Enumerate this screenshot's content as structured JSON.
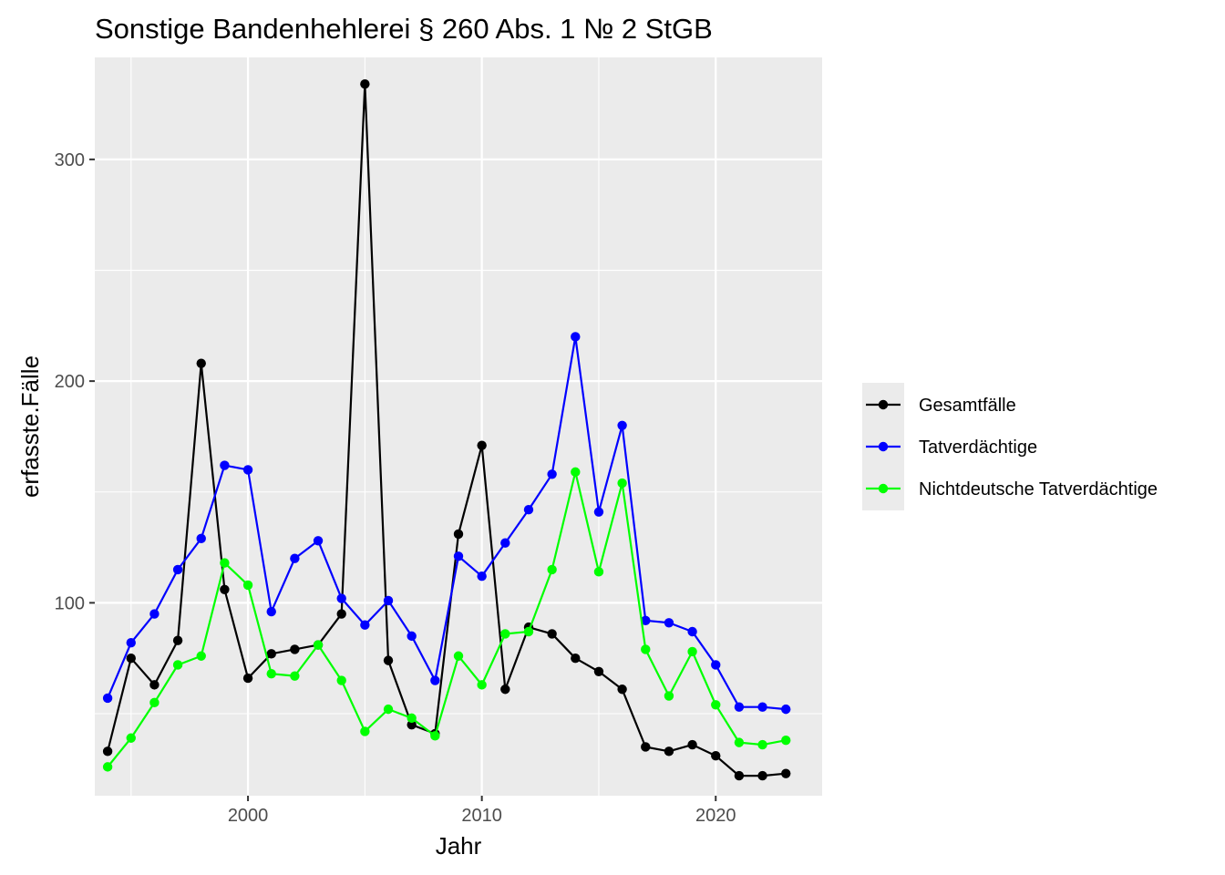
{
  "chart_data": {
    "type": "line",
    "title": "Sonstige Bandenhehlerei § 260 Abs. 1 № 2 StGB",
    "xlabel": "Jahr",
    "ylabel": "erfasste.Fälle",
    "x": [
      1994,
      1995,
      1996,
      1997,
      1998,
      1999,
      2000,
      2001,
      2002,
      2003,
      2004,
      2005,
      2006,
      2007,
      2008,
      2009,
      2010,
      2011,
      2012,
      2013,
      2014,
      2015,
      2016,
      2017,
      2018,
      2019,
      2020,
      2021,
      2022,
      2023
    ],
    "xlim": [
      1993.45,
      2024.55
    ],
    "ylim": [
      13,
      346
    ],
    "x_ticks": [
      2000,
      2010,
      2020
    ],
    "x_tick_labels": [
      "2000",
      "2010",
      "2020"
    ],
    "y_ticks": [
      100,
      200,
      300
    ],
    "y_tick_labels": [
      "100",
      "200",
      "300"
    ],
    "grid": true,
    "legend_position": "right",
    "series": [
      {
        "name": "Gesamtfälle",
        "color": "#000000",
        "values": [
          33,
          75,
          63,
          83,
          208,
          106,
          66,
          77,
          79,
          81,
          95,
          334,
          74,
          45,
          41,
          131,
          171,
          61,
          89,
          86,
          75,
          69,
          61,
          35,
          33,
          36,
          31,
          22,
          22,
          23
        ]
      },
      {
        "name": "Tatverdächtige",
        "color": "#0000ff",
        "values": [
          57,
          82,
          95,
          115,
          129,
          162,
          160,
          96,
          120,
          128,
          102,
          90,
          101,
          85,
          65,
          121,
          112,
          127,
          142,
          158,
          220,
          141,
          180,
          92,
          91,
          87,
          72,
          53,
          53,
          52
        ]
      },
      {
        "name": "Nichtdeutsche Tatverdächtige",
        "color": "#00ff00",
        "values": [
          26,
          39,
          55,
          72,
          76,
          118,
          108,
          68,
          67,
          81,
          65,
          42,
          52,
          48,
          40,
          76,
          63,
          86,
          87,
          115,
          159,
          114,
          154,
          79,
          58,
          78,
          54,
          37,
          36,
          38
        ]
      }
    ]
  }
}
